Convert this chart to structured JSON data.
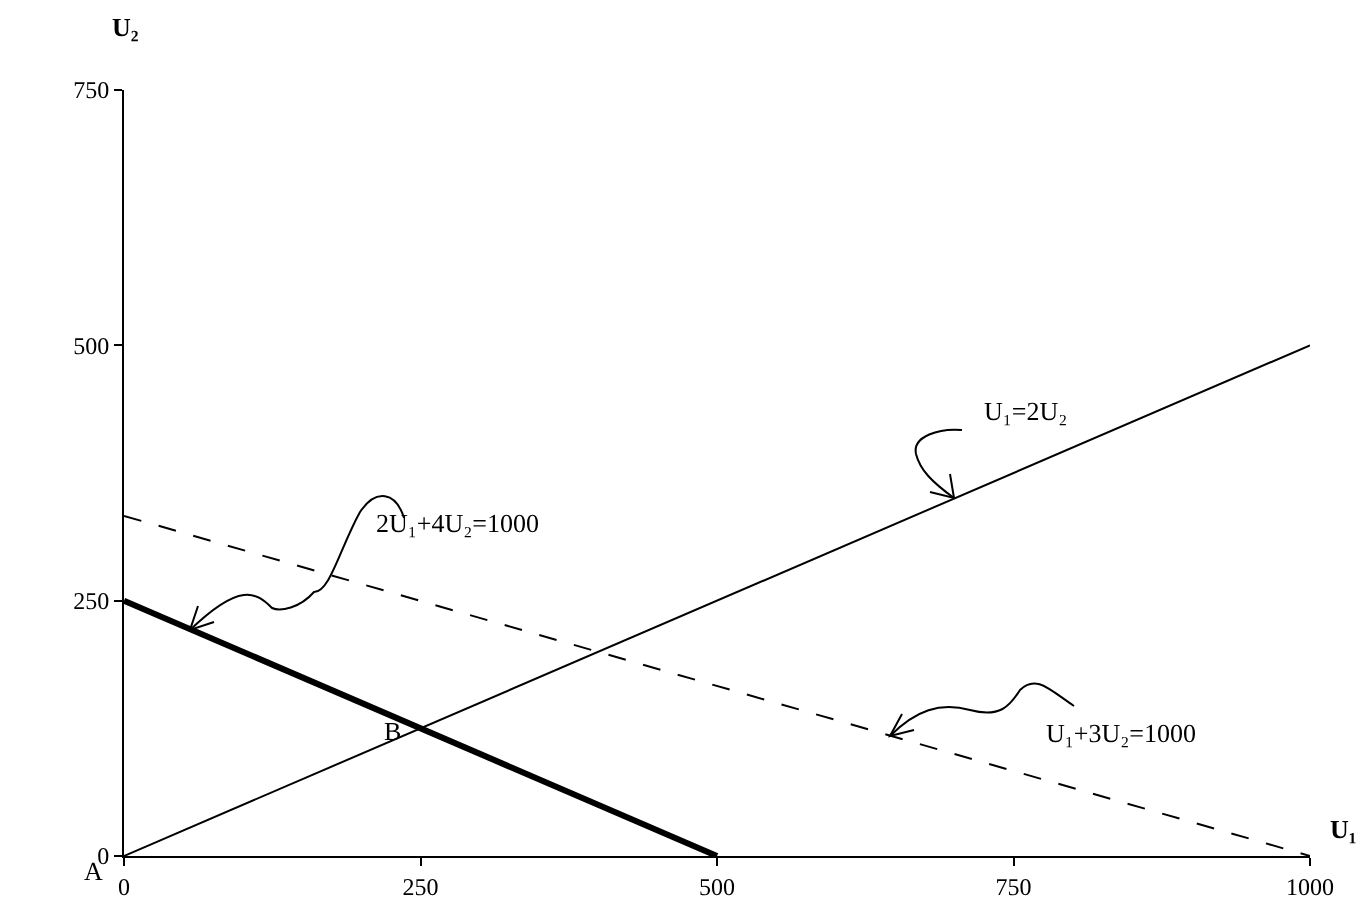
{
  "chart_data": {
    "type": "line",
    "xlabel": "U₁",
    "ylabel": "U₂",
    "xlim": [
      0,
      1000
    ],
    "xticks": [
      0,
      250,
      500,
      750,
      1000
    ],
    "ylim": [
      0,
      750
    ],
    "yticks": [
      0,
      250,
      500,
      750
    ],
    "grid": false,
    "marker": "none",
    "series": [
      {
        "color": "#000000",
        "x": [
          0,
          1000
        ],
        "values": [
          0,
          500
        ],
        "line_style": "solid"
      },
      {
        "color": "#000000",
        "x": [
          0,
          500
        ],
        "values": [
          250,
          0
        ],
        "line_style": "solid"
      },
      {
        "color": "#000000",
        "x": [
          0,
          1000
        ],
        "values": [
          333,
          0
        ],
        "line_style": "dashed"
      }
    ],
    "annotations": [
      {
        "text": "U₁=2U₂",
        "x": 700,
        "y": 350
      },
      {
        "text": "2U₁+4U₂=1000",
        "x": 56,
        "y": 222
      },
      {
        "text": "U₁+3U₂=1000",
        "x": 646,
        "y": 118
      },
      {
        "text": "A",
        "x": 0,
        "y": 0
      },
      {
        "text": "B",
        "x": 250,
        "y": 125
      }
    ]
  }
}
